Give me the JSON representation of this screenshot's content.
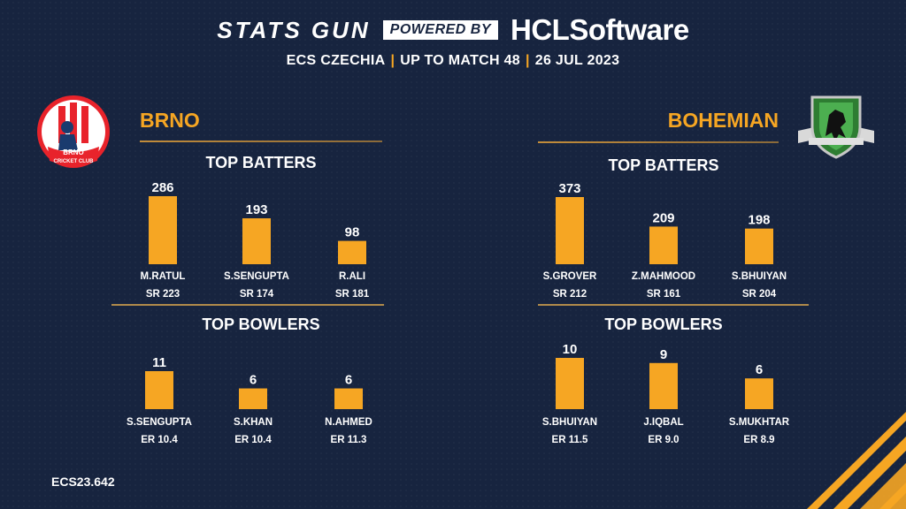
{
  "header": {
    "brand": "STATS GUN",
    "powered_by": "POWERED BY",
    "sponsor": "HCLSoftware",
    "competition": "ECS CZECHIA",
    "match_range": "UP TO MATCH 48",
    "date": "26 JUL 2023"
  },
  "colors": {
    "background": "#17243f",
    "bar": "#f6a623",
    "accent": "#f6a623"
  },
  "teams": [
    {
      "name": "BRNO",
      "logo_icon": "brno-cricket-club-crest-icon",
      "logo_text_1": "BRNO",
      "logo_text_2": "CRICKET CLUB",
      "batters_title": "TOP BATTERS",
      "bowlers_title": "TOP BOWLERS"
    },
    {
      "name": "BOHEMIAN",
      "logo_icon": "bohemian-cricket-club-shield-icon",
      "batters_title": "TOP BATTERS",
      "bowlers_title": "TOP BOWLERS"
    }
  ],
  "chart_data": [
    {
      "type": "bar",
      "team": "BRNO",
      "title": "TOP BATTERS",
      "categories": [
        "M.RATUL",
        "S.SENGUPTA",
        "R.ALI"
      ],
      "values": [
        286,
        193,
        98
      ],
      "sublabels": [
        "SR 223",
        "SR 174",
        "SR 181"
      ]
    },
    {
      "type": "bar",
      "team": "BRNO",
      "title": "TOP BOWLERS",
      "categories": [
        "S.SENGUPTA",
        "S.KHAN",
        "N.AHMED"
      ],
      "values": [
        11,
        6,
        6
      ],
      "sublabels": [
        "ER 10.4",
        "ER 10.4",
        "ER 11.3"
      ]
    },
    {
      "type": "bar",
      "team": "BOHEMIAN",
      "title": "TOP BATTERS",
      "categories": [
        "S.GROVER",
        "Z.MAHMOOD",
        "S.BHUIYAN"
      ],
      "values": [
        373,
        209,
        198
      ],
      "sublabels": [
        "SR 212",
        "SR 161",
        "SR 204"
      ]
    },
    {
      "type": "bar",
      "team": "BOHEMIAN",
      "title": "TOP BOWLERS",
      "categories": [
        "S.BHUIYAN",
        "J.IQBAL",
        "S.MUKHTAR"
      ],
      "values": [
        10,
        9,
        6
      ],
      "sublabels": [
        "ER 11.5",
        "ER 9.0",
        "ER 8.9"
      ]
    }
  ],
  "footer": {
    "code": "ECS23.642"
  }
}
